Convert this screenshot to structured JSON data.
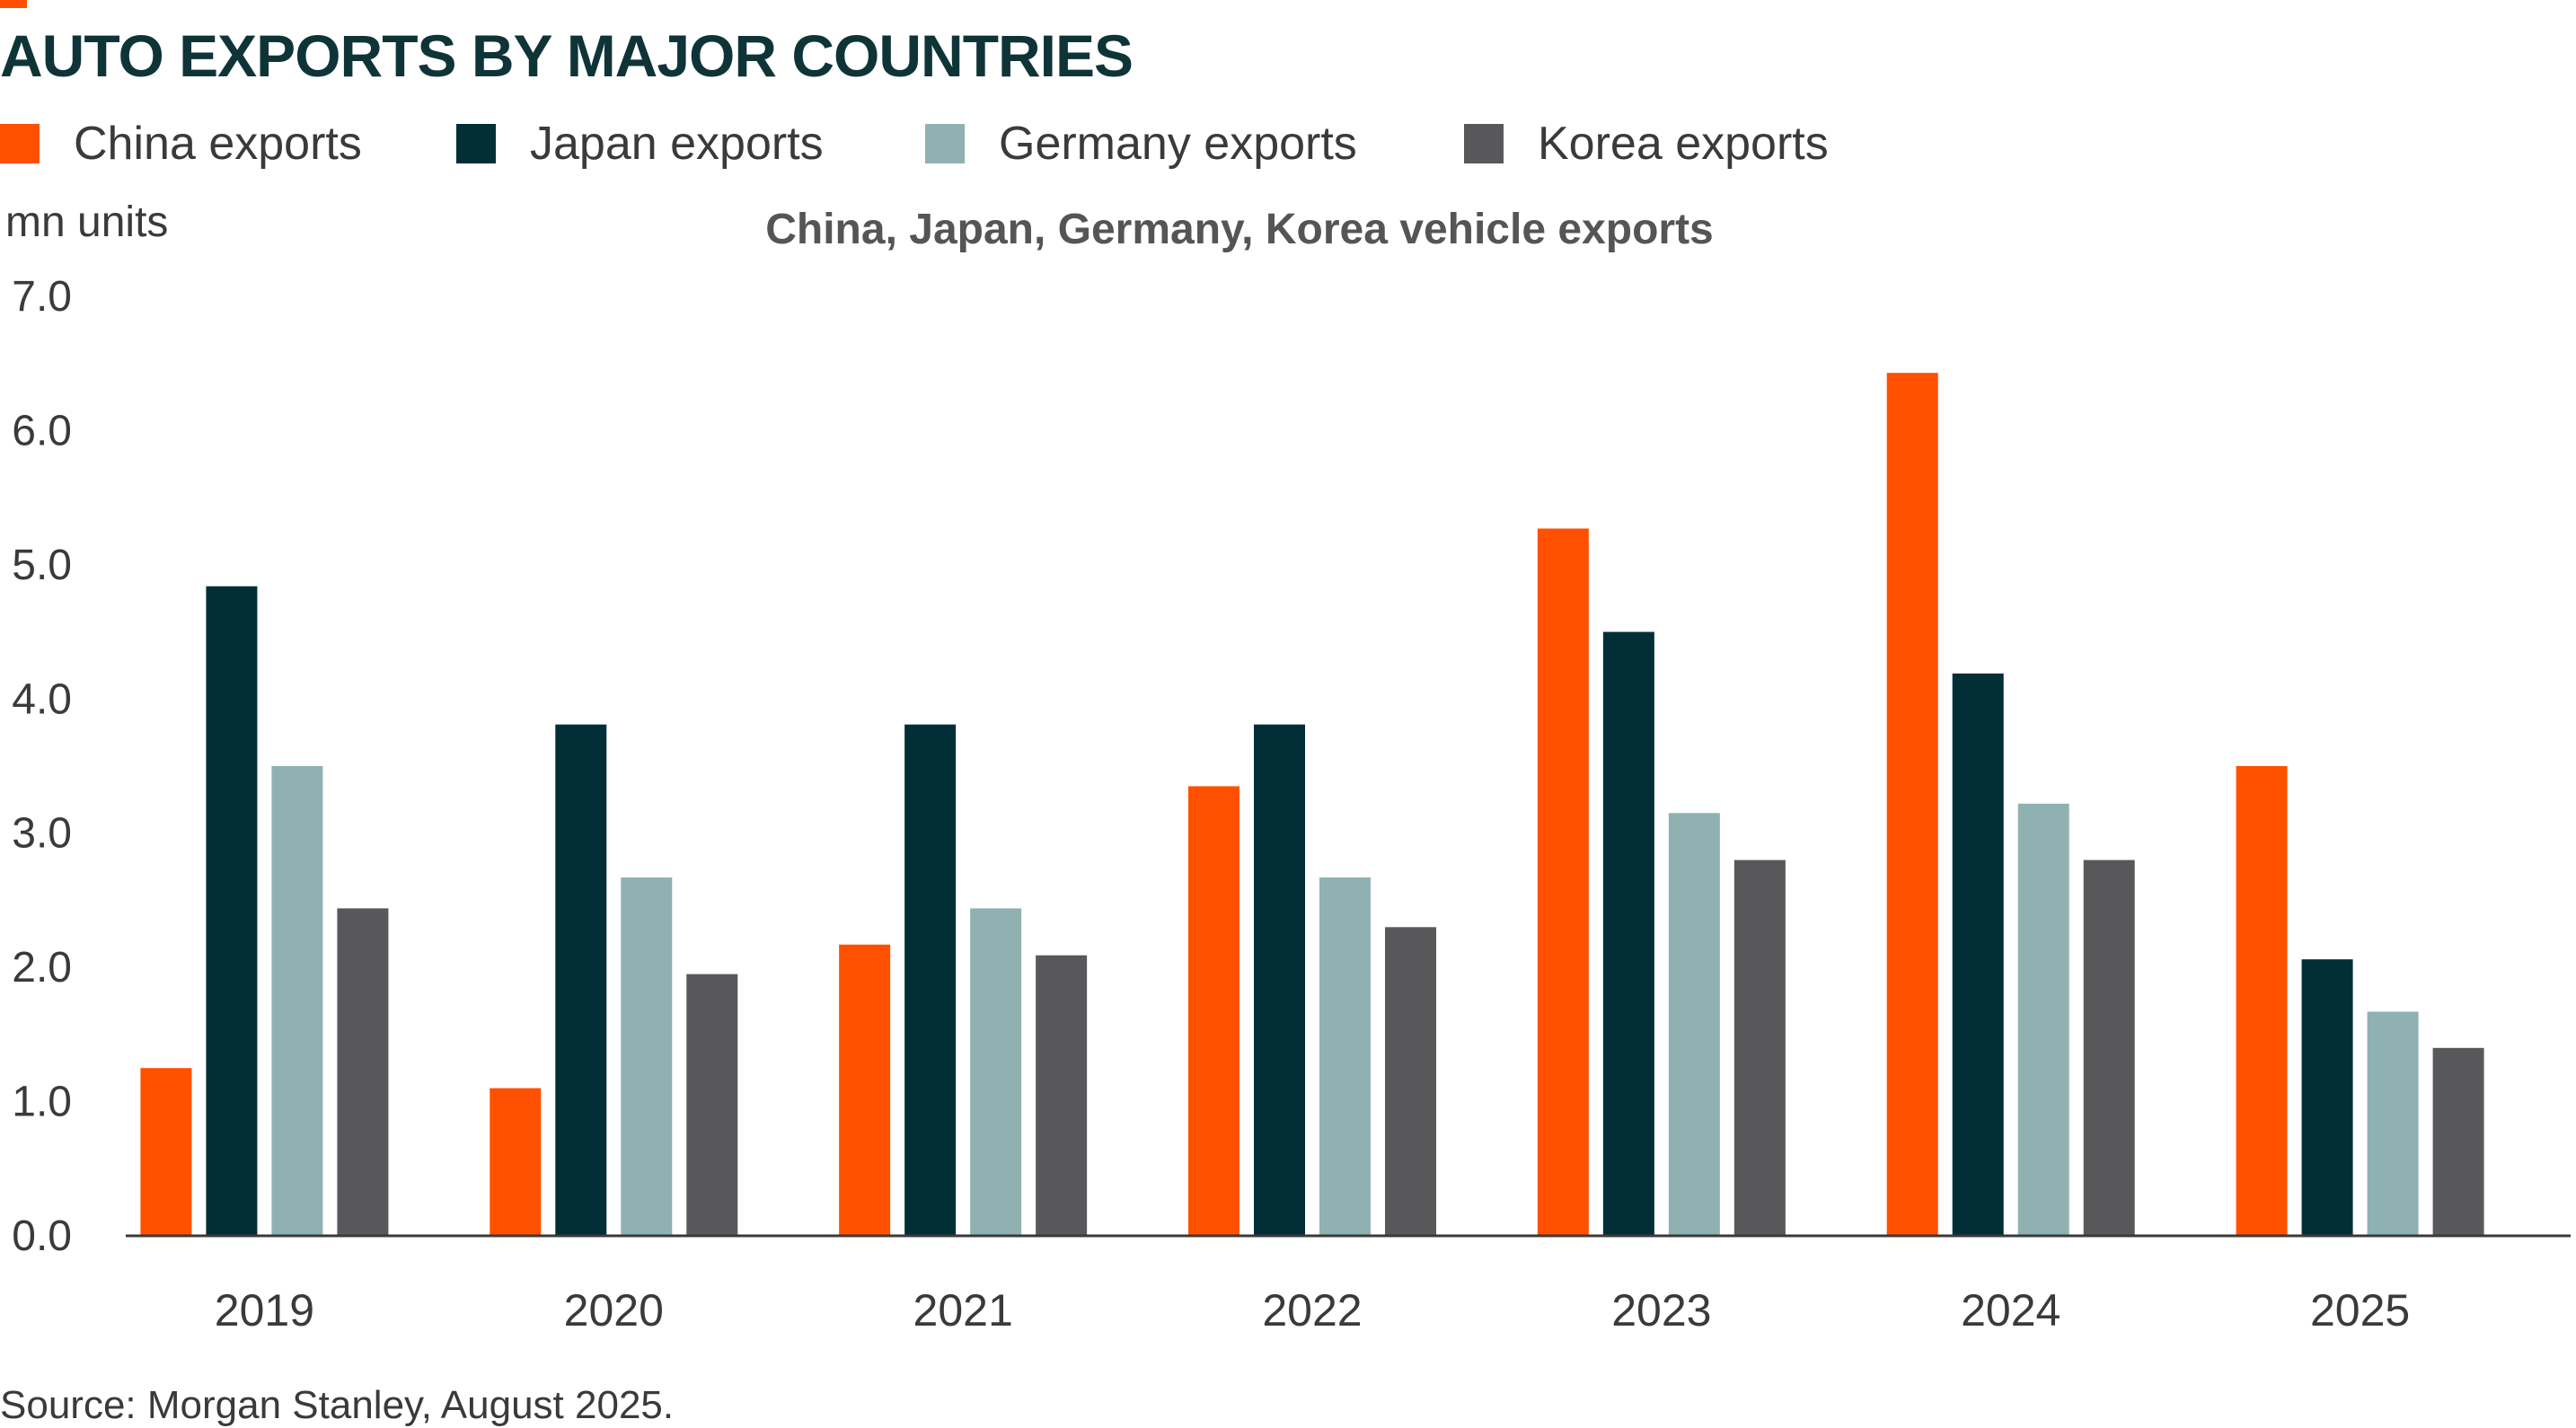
{
  "title": "AUTO EXPORTS BY MAJOR COUNTRIES",
  "legend": [
    {
      "label": "China exports",
      "color": "#ff5000"
    },
    {
      "label": "Japan exports",
      "color": "#022f37"
    },
    {
      "label": "Germany exports",
      "color": "#8fb1b1"
    },
    {
      "label": "Korea exports",
      "color": "#58585a"
    }
  ],
  "unit_label": "mn units",
  "subtitle": "China, Japan, Germany, Korea vehicle exports",
  "source": "Source: Morgan Stanley, August 2025.",
  "chart_data": {
    "type": "bar",
    "title": "AUTO EXPORTS BY MAJOR COUNTRIES",
    "subtitle": "China, Japan, Germany, Korea vehicle exports",
    "ylabel": "mn units",
    "xlabel": "",
    "categories": [
      "2019",
      "2020",
      "2021",
      "2022",
      "2023",
      "2024",
      "2025"
    ],
    "ylim": [
      0,
      7
    ],
    "yticks": [
      "0.0",
      "1.0",
      "2.0",
      "3.0",
      "4.0",
      "5.0",
      "6.0",
      "7.0"
    ],
    "grid": false,
    "legend_position": "top-left",
    "series": [
      {
        "name": "China exports",
        "color": "#ff5000",
        "values": [
          1.25,
          1.1,
          2.17,
          3.35,
          5.27,
          6.43,
          3.5
        ]
      },
      {
        "name": "Japan exports",
        "color": "#022f37",
        "values": [
          4.84,
          3.81,
          3.81,
          3.81,
          4.5,
          4.19,
          2.06
        ]
      },
      {
        "name": "Germany exports",
        "color": "#8fb1b1",
        "values": [
          3.5,
          2.67,
          2.44,
          2.67,
          3.15,
          3.22,
          1.67
        ]
      },
      {
        "name": "Korea exports",
        "color": "#58585a",
        "values": [
          2.44,
          1.95,
          2.09,
          2.3,
          2.8,
          2.8,
          1.4
        ]
      }
    ]
  }
}
